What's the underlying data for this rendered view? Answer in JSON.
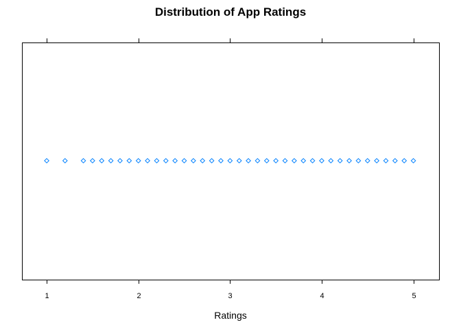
{
  "chart_data": {
    "type": "scatter",
    "title": "Distribution of App Ratings",
    "xlabel": "Ratings",
    "ylabel": "",
    "xlim": [
      0.73,
      5.28
    ],
    "x_ticks": [
      1,
      2,
      3,
      4,
      5
    ],
    "x_tick_labels": [
      "1",
      "2",
      "3",
      "4",
      "5"
    ],
    "top_ticks": true,
    "grid": false,
    "legend": "none",
    "point_color": "#0080ff",
    "marker": "open-diamond",
    "x": [
      1.0,
      1.2,
      1.4,
      1.5,
      1.6,
      1.7,
      1.8,
      1.9,
      2.0,
      2.1,
      2.2,
      2.3,
      2.4,
      2.5,
      2.6,
      2.7,
      2.8,
      2.9,
      3.0,
      3.1,
      3.2,
      3.3,
      3.4,
      3.5,
      3.6,
      3.7,
      3.8,
      3.9,
      4.0,
      4.1,
      4.2,
      4.3,
      4.4,
      4.5,
      4.6,
      4.7,
      4.8,
      4.9,
      5.0
    ]
  }
}
